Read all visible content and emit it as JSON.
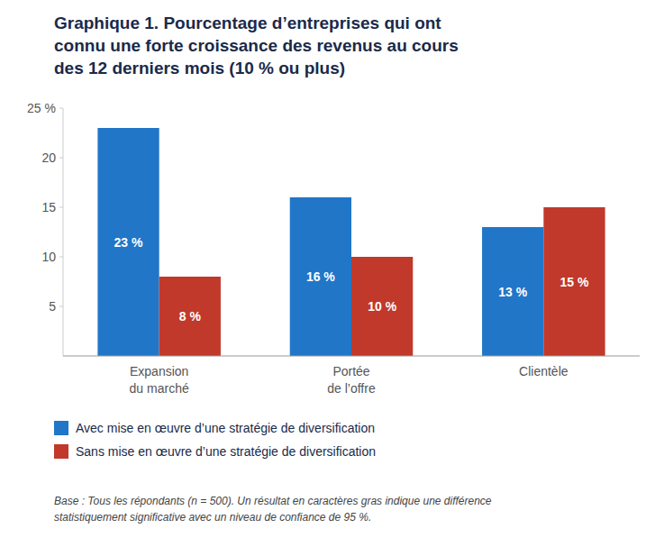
{
  "chart_data": {
    "type": "bar",
    "title": "Graphique 1. Pourcentage d’entreprises qui ont\nconnu une forte croissance des revenus au cours\ndes 12 derniers mois (10 % ou plus)",
    "categories": [
      "Expansion\ndu marché",
      "Portée\nde l’offre",
      "Clientèle"
    ],
    "series": [
      {
        "name": "Avec mise en œuvre d’une stratégie de diversification",
        "color": "#2176C8",
        "values": [
          23,
          16,
          13
        ],
        "value_labels": [
          "23 %",
          "16 %",
          "13 %"
        ]
      },
      {
        "name": "Sans mise en œuvre d’une stratégie de diversification",
        "color": "#C0392B",
        "values": [
          8,
          10,
          15
        ],
        "value_labels": [
          "8 %",
          "10 %",
          "15 %"
        ]
      }
    ],
    "ylim": [
      0,
      25
    ],
    "yticks": [
      5,
      10,
      15,
      20,
      {
        "value": 25,
        "label": "25 %"
      }
    ],
    "grid": false,
    "legend": "bottom",
    "data_labels": true,
    "footnote": "Base : Tous les répondants (n = 500). Un résultat en caractères gras indique une différence\nstatistiquement significative avec un niveau de confiance de 95 %."
  }
}
